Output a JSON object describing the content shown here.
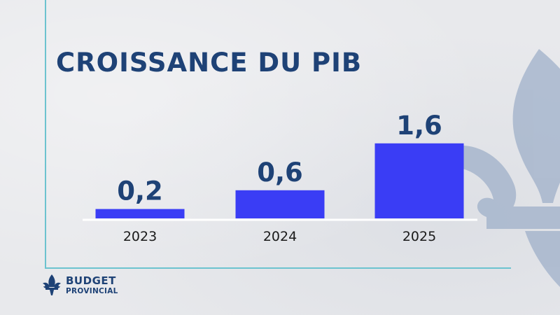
{
  "title": "CROISSANCE DU PIB",
  "logo": {
    "line1": "BUDGET",
    "line2": "PROVINCIAL"
  },
  "colors": {
    "bar": "#3a3df5",
    "title": "#1e4276",
    "frame": "#6cc3cf",
    "fleur": "#9fb0c9"
  },
  "icons": {
    "background": "fleur-de-lis-icon",
    "logo": "fleur-de-lis-icon"
  },
  "chart_data": {
    "type": "bar",
    "title": "CROISSANCE DU PIB",
    "categories": [
      "2023",
      "2024",
      "2025"
    ],
    "values": [
      0.2,
      0.6,
      1.6
    ],
    "value_labels": [
      "0,2",
      "0,6",
      "1,6"
    ],
    "xlabel": "",
    "ylabel": "",
    "ylim": [
      0,
      2
    ],
    "grid": false
  }
}
